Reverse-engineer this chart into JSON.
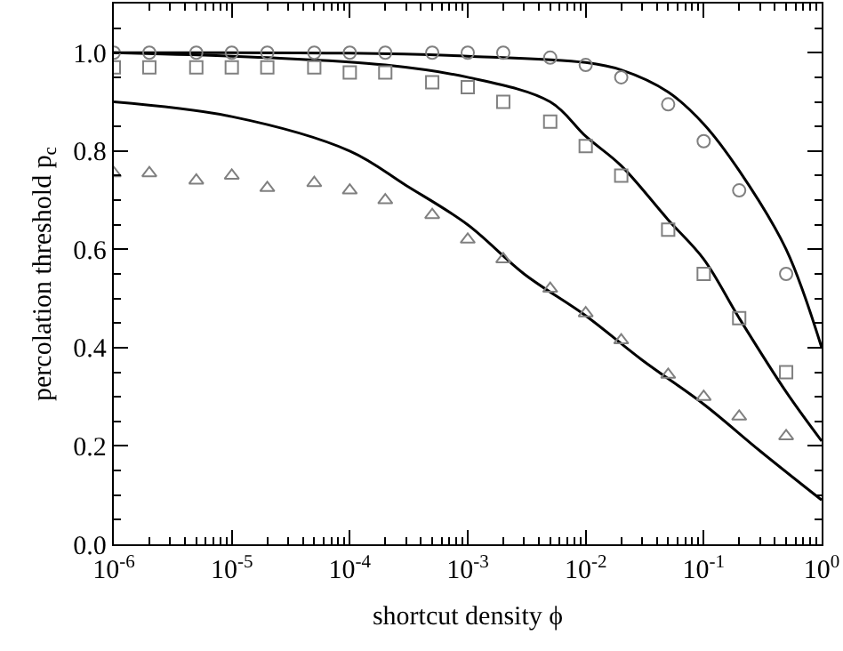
{
  "chart_data": {
    "type": "scatter",
    "xlabel": "shortcut density ϕ",
    "ylabel": "percolation threshold p$_{c}$",
    "log": "x",
    "grid": false,
    "xlim": [
      1e-06,
      1
    ],
    "xticks": [
      {
        "value": 1e-06,
        "label": "10$^{-6}$"
      },
      {
        "value": 1e-05,
        "label": "10$^{-5}$"
      },
      {
        "value": 0.0001,
        "label": "10$^{-4}$"
      },
      {
        "value": 0.001,
        "label": "10$^{-3}$"
      },
      {
        "value": 0.01,
        "label": "10$^{-2}$"
      },
      {
        "value": 0.1,
        "label": "10$^{-1}$"
      },
      {
        "value": 1,
        "label": "10$^{0}$"
      }
    ],
    "ylim": [
      0,
      1.1
    ],
    "yticks": [
      {
        "value": 0,
        "label": "0.0"
      },
      {
        "value": 0.2,
        "label": "0.2"
      },
      {
        "value": 0.4,
        "label": "0.4"
      },
      {
        "value": 0.6,
        "label": "0.6"
      },
      {
        "value": 0.8,
        "label": "0.8"
      },
      {
        "value": 1,
        "label": "1.0"
      }
    ],
    "x": [
      1e-06,
      2e-06,
      5e-06,
      1e-05,
      2e-05,
      5e-05,
      0.0001,
      0.0002,
      0.0005,
      0.001,
      0.002,
      0.005,
      0.01,
      0.02,
      0.05,
      0.1,
      0.2,
      0.5
    ],
    "series": [
      {
        "marker": "circle",
        "color": "#808080",
        "x": [
          1e-06,
          2e-06,
          5e-06,
          1e-05,
          2e-05,
          5e-05,
          0.0001,
          0.0002,
          0.0005,
          0.001,
          0.002,
          0.005,
          0.01,
          0.02,
          0.05,
          0.1,
          0.2,
          0.5
        ],
        "values": [
          1.0,
          1.0,
          1.0,
          1.0,
          1.0,
          1.0,
          1.0,
          1.0,
          1.0,
          1.0,
          1.0,
          0.99,
          0.975,
          0.95,
          0.895,
          0.82,
          0.72,
          0.55
        ]
      },
      {
        "marker": "square",
        "color": "#808080",
        "values": [
          0.97,
          0.97,
          0.97,
          0.97,
          0.97,
          0.97,
          0.96,
          0.96,
          0.94,
          0.93,
          0.9,
          0.86,
          0.81,
          0.75,
          0.64,
          0.55,
          0.46,
          0.35
        ]
      },
      {
        "marker": "triangle",
        "color": "#808080",
        "values": [
          0.755,
          0.755,
          0.74,
          0.75,
          0.725,
          0.735,
          0.72,
          0.7,
          0.67,
          0.62,
          0.58,
          0.52,
          0.47,
          0.415,
          0.345,
          0.3,
          0.26,
          0.22
        ]
      },
      {
        "type": "line",
        "marker": "none",
        "color": "#000000",
        "x": [
          1e-06,
          0.0001,
          0.001,
          0.01,
          0.02,
          0.05,
          0.1,
          0.2,
          0.5,
          1
        ],
        "values": [
          1.0,
          0.999,
          0.993,
          0.98,
          0.965,
          0.92,
          0.855,
          0.76,
          0.6,
          0.4
        ]
      },
      {
        "type": "line",
        "marker": "none",
        "color": "#000000",
        "x": [
          1e-06,
          2e-05,
          0.0002,
          0.001,
          0.005,
          0.01,
          0.02,
          0.05,
          0.1,
          0.2,
          0.5,
          1
        ],
        "values": [
          1.0,
          0.99,
          0.975,
          0.95,
          0.9,
          0.83,
          0.77,
          0.66,
          0.58,
          0.46,
          0.31,
          0.21
        ]
      },
      {
        "type": "line",
        "marker": "none",
        "color": "#000000",
        "x": [
          1e-06,
          1e-05,
          0.0001,
          0.0003,
          0.001,
          0.003,
          0.01,
          0.03,
          0.1,
          0.3,
          1
        ],
        "values": [
          0.9,
          0.87,
          0.8,
          0.73,
          0.65,
          0.55,
          0.465,
          0.375,
          0.285,
          0.19,
          0.09
        ]
      }
    ]
  }
}
